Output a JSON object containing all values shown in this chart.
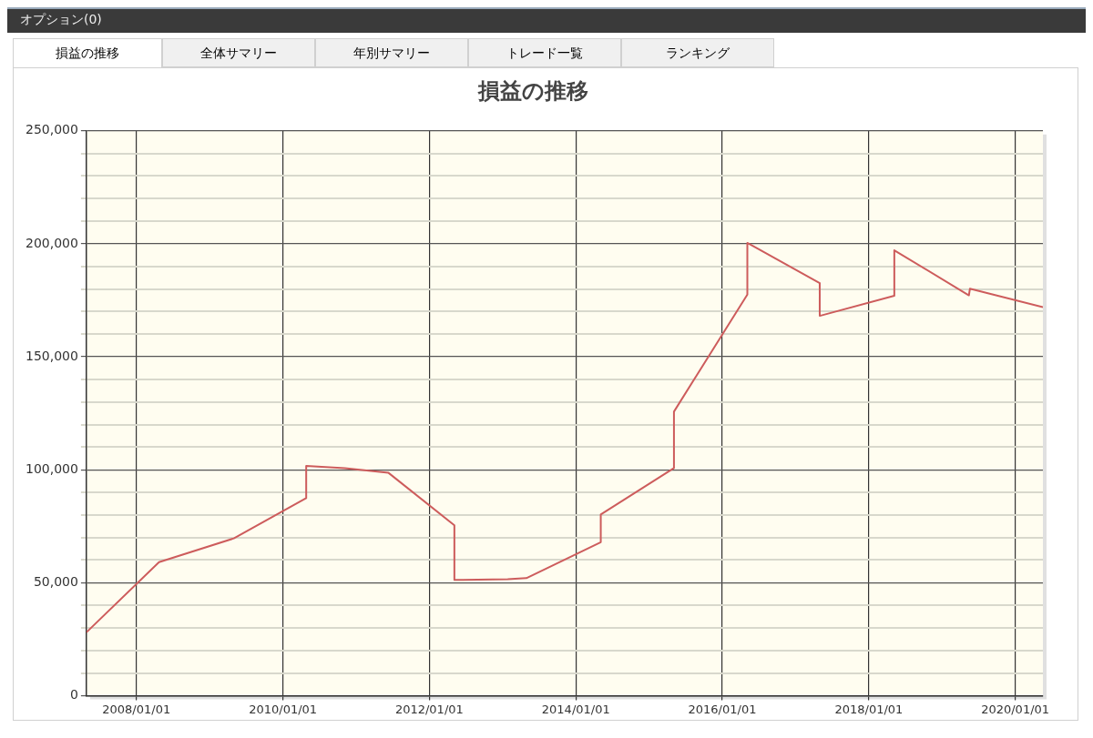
{
  "chart_data": {
    "type": "line",
    "title": "損益の推移",
    "annotations": [
      "オプション(0)",
      "損益の推移",
      "全体サマリー",
      "年別サマリー",
      "トレード一覧",
      "ランキング"
    ],
    "x": [
      "2007-04-27",
      "2008-04-23",
      "2009-05-01",
      "2010-04-27",
      "2010-04-27",
      "2010-11-06",
      "2011-06-10",
      "2012-05-05",
      "2012-05-05",
      "2013-01-26",
      "2013-04-29",
      "2014-05-05",
      "2014-05-05",
      "2015-05-05",
      "2015-05-05",
      "2016-05-05",
      "2016-05-05",
      "2017-05-01",
      "2017-05-01",
      "2018-05-08",
      "2018-05-08",
      "2019-05-15",
      "2019-05-20",
      "2020-05-18"
    ],
    "series": [
      {
        "color": "#cd5c5c",
        "values": [
          28000,
          59100,
          69600,
          87400,
          101700,
          100700,
          98700,
          75400,
          51200,
          51500,
          52000,
          67900,
          80200,
          100700,
          125700,
          177500,
          200400,
          182600,
          168100,
          177000,
          197100,
          177200,
          180100,
          172000
        ]
      }
    ],
    "xlim": [
      "2007-04-27",
      "2020-05-18"
    ],
    "xticks": [
      {
        "value": "2008-01-01",
        "label": "2008/01/01"
      },
      {
        "value": "2010-01-01",
        "label": "2010/01/01"
      },
      {
        "value": "2012-01-01",
        "label": "2012/01/01"
      },
      {
        "value": "2014-01-01",
        "label": "2014/01/01"
      },
      {
        "value": "2016-01-01",
        "label": "2016/01/01"
      },
      {
        "value": "2018-01-01",
        "label": "2018/01/01"
      },
      {
        "value": "2020-01-01",
        "label": "2020/01/01"
      }
    ],
    "ylim": [
      0,
      250000
    ],
    "yticks": [
      0,
      {
        "value": 10000,
        "label": null
      },
      {
        "value": 20000,
        "label": null
      },
      {
        "value": 30000,
        "label": null
      },
      {
        "value": 40000,
        "label": null
      },
      {
        "value": 50000,
        "label": "50,000"
      },
      {
        "value": 60000,
        "label": null
      },
      {
        "value": 70000,
        "label": null
      },
      {
        "value": 80000,
        "label": null
      },
      {
        "value": 90000,
        "label": null
      },
      {
        "value": 100000,
        "label": "100,000"
      },
      {
        "value": 110000,
        "label": null
      },
      {
        "value": 120000,
        "label": null
      },
      {
        "value": 130000,
        "label": null
      },
      {
        "value": 140000,
        "label": null
      },
      {
        "value": 150000,
        "label": "150,000"
      },
      {
        "value": 160000,
        "label": null
      },
      {
        "value": 170000,
        "label": null
      },
      {
        "value": 180000,
        "label": null
      },
      {
        "value": 190000,
        "label": null
      },
      {
        "value": 200000,
        "label": "200,000"
      },
      {
        "value": 210000,
        "label": null
      },
      {
        "value": 220000,
        "label": null
      },
      {
        "value": 230000,
        "label": null
      },
      {
        "value": 240000,
        "label": null
      },
      {
        "value": 250000,
        "label": "250,000"
      }
    ],
    "grid": true,
    "legend": false,
    "marker": "none",
    "line_style": "solid"
  }
}
